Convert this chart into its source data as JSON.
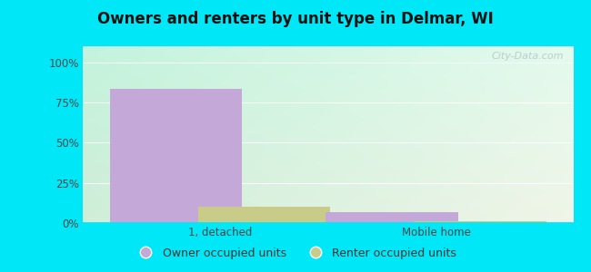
{
  "title": "Owners and renters by unit type in Delmar, WI",
  "categories": [
    "1, detached",
    "Mobile home"
  ],
  "owner_values": [
    83.3,
    6.7
  ],
  "renter_values": [
    10.0,
    1.0
  ],
  "owner_color": "#c4a8d8",
  "renter_color": "#c8cc88",
  "yticks": [
    0,
    25,
    50,
    75,
    100
  ],
  "ytick_labels": [
    "0%",
    "25%",
    "50%",
    "75%",
    "100%"
  ],
  "ylim": [
    0,
    110
  ],
  "background_outer": "#00e8f8",
  "legend_owner": "Owner occupied units",
  "legend_renter": "Renter occupied units",
  "watermark": "City-Data.com",
  "bar_width": 0.3,
  "group_positions": [
    0.28,
    0.72
  ]
}
